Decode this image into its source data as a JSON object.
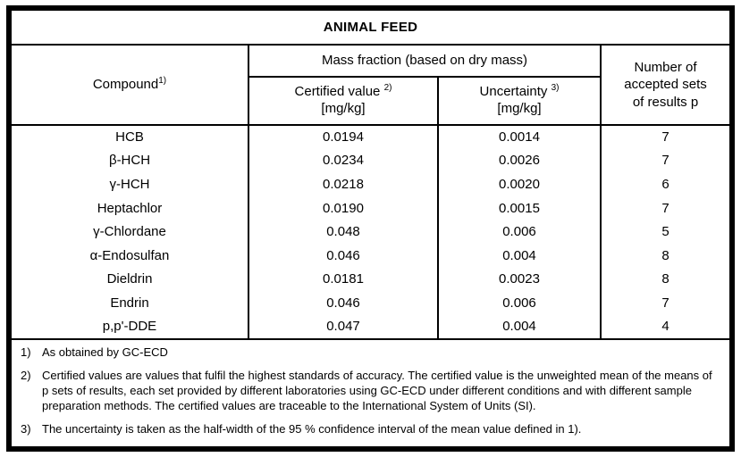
{
  "title": "ANIMAL FEED",
  "table": {
    "columns": {
      "compound_label": "Compound",
      "compound_sup": "1)",
      "mass_fraction_label": "Mass fraction (based on dry mass)",
      "certified_label": "Certified value",
      "certified_sup": "2)",
      "certified_unit": "[mg/kg]",
      "uncertainty_label": "Uncertainty",
      "uncertainty_sup": "3)",
      "uncertainty_unit": "[mg/kg]",
      "accepted_label": "Number of accepted sets of results p"
    },
    "rows": [
      {
        "compound": "HCB",
        "certified_value": "0.0194",
        "uncertainty": "0.0014",
        "accepted_sets": "7"
      },
      {
        "compound": "β-HCH",
        "certified_value": "0.0234",
        "uncertainty": "0.0026",
        "accepted_sets": "7"
      },
      {
        "compound": "γ-HCH",
        "certified_value": "0.0218",
        "uncertainty": "0.0020",
        "accepted_sets": "6"
      },
      {
        "compound": "Heptachlor",
        "certified_value": "0.0190",
        "uncertainty": "0.0015",
        "accepted_sets": "7"
      },
      {
        "compound": "γ-Chlordane",
        "certified_value": "0.048",
        "uncertainty": "0.006",
        "accepted_sets": "5"
      },
      {
        "compound": "α-Endosulfan",
        "certified_value": "0.046",
        "uncertainty": "0.004",
        "accepted_sets": "8"
      },
      {
        "compound": "Dieldrin",
        "certified_value": "0.0181",
        "uncertainty": "0.0023",
        "accepted_sets": "8"
      },
      {
        "compound": "Endrin",
        "certified_value": "0.046",
        "uncertainty": "0.006",
        "accepted_sets": "7"
      },
      {
        "compound": "p,p'-DDE",
        "certified_value": "0.047",
        "uncertainty": "0.004",
        "accepted_sets": "4"
      }
    ]
  },
  "footnotes": [
    {
      "marker": "1)",
      "text": "As obtained by GC-ECD"
    },
    {
      "marker": "2)",
      "text": "Certified values are values that fulfil the highest standards of accuracy. The certified value is the unweighted mean of the means of p sets of results, each set provided by different laboratories using GC-ECD under different conditions and with different sample preparation methods. The certified values are traceable to the International System of Units (SI)."
    },
    {
      "marker": "3)",
      "text": "The uncertainty is taken as the half-width of the 95 % confidence interval of the mean value defined in 1)."
    }
  ],
  "colors": {
    "border": "#000000",
    "text": "#000000",
    "background": "#ffffff"
  }
}
